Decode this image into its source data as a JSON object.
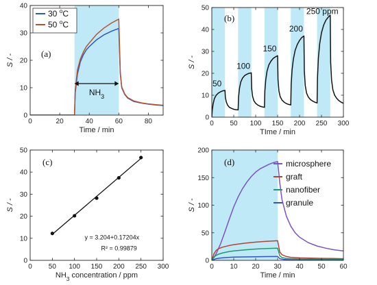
{
  "chart_data": [
    {
      "panel": "(a)",
      "type": "line",
      "xlabel": "Time / min",
      "ylabel": "S / -",
      "xlim": [
        0,
        90
      ],
      "ylim": [
        0,
        40
      ],
      "xticks": [
        0,
        20,
        40,
        60,
        80
      ],
      "yticks": [
        0,
        10,
        20,
        30,
        40
      ],
      "shaded": [
        [
          30,
          60
        ]
      ],
      "annotation": "NH3",
      "legend": "top-left",
      "series": [
        {
          "name": "30 °C",
          "color": "#2f55c5",
          "x": [
            0,
            30,
            30.5,
            32,
            34,
            36,
            38,
            40,
            45,
            50,
            55,
            59.9,
            60,
            61,
            62,
            64,
            66,
            70,
            75,
            80,
            85,
            90
          ],
          "y": [
            0,
            0,
            8,
            15,
            19.5,
            22,
            23.8,
            25,
            27.5,
            29.3,
            30.6,
            31.6,
            31.6,
            15,
            10,
            7.5,
            6.2,
            5,
            4.4,
            4,
            3.7,
            3.5
          ]
        },
        {
          "name": "50 °C",
          "color": "#b5532e",
          "x": [
            0,
            30,
            30.5,
            32,
            34,
            36,
            38,
            40,
            45,
            50,
            55,
            59.9,
            60,
            61,
            62,
            64,
            66,
            70,
            75,
            80,
            85,
            90
          ],
          "y": [
            0,
            0,
            9,
            16.5,
            20.5,
            23,
            25,
            26.3,
            29.5,
            31.8,
            33.6,
            35,
            35,
            15.5,
            10.3,
            7.7,
            6.4,
            5.2,
            4.5,
            4.1,
            3.8,
            3.6
          ]
        }
      ]
    },
    {
      "panel": "(b)",
      "type": "line",
      "xlabel": "TIme / min",
      "ylabel": "S / -",
      "xlim": [
        0,
        300
      ],
      "ylim": [
        0,
        50
      ],
      "xticks": [
        0,
        50,
        100,
        150,
        200,
        250,
        300
      ],
      "yticks": [
        0,
        10,
        20,
        30,
        40,
        50
      ],
      "shaded": [
        [
          0,
          30
        ],
        [
          60,
          90
        ],
        [
          120,
          150
        ],
        [
          180,
          210
        ],
        [
          240,
          270
        ]
      ],
      "annotations": [
        {
          "text": "50",
          "x": 12,
          "y": 14
        },
        {
          "text": "100",
          "x": 72,
          "y": 22
        },
        {
          "text": "150",
          "x": 132,
          "y": 30
        },
        {
          "text": "200",
          "x": 192,
          "y": 39
        },
        {
          "text": "250 ppm",
          "x": 252,
          "y": 47
        }
      ],
      "series": [
        {
          "name": "",
          "color": "#111111",
          "x": [
            0,
            1,
            3,
            6,
            10,
            15,
            20,
            25,
            29.9,
            30,
            31,
            33,
            36,
            40,
            45,
            50,
            55,
            59.9,
            60,
            61,
            63,
            66,
            70,
            75,
            80,
            85,
            89.9,
            90,
            91,
            93,
            96,
            100,
            105,
            110,
            115,
            119.9,
            120,
            121,
            123,
            126,
            130,
            135,
            140,
            145,
            149.9,
            150,
            151,
            153,
            156,
            160,
            165,
            170,
            175,
            179.9,
            180,
            181,
            183,
            186,
            190,
            195,
            200,
            205,
            209.9,
            210,
            211,
            213,
            216,
            220,
            225,
            230,
            235,
            239.9,
            240,
            241,
            243,
            246,
            250,
            255,
            260,
            265,
            269.9,
            270,
            271,
            273,
            276,
            280,
            285,
            290,
            295,
            300
          ],
          "y": [
            0,
            3,
            6,
            8.5,
            10,
            11,
            11.6,
            12,
            12.2,
            12.2,
            9,
            7,
            5.5,
            4.5,
            4,
            3.6,
            3.4,
            3.3,
            3.3,
            9,
            13,
            16,
            17.8,
            19,
            19.6,
            20,
            20.2,
            20.2,
            13,
            9.5,
            7.5,
            6.3,
            5.5,
            5,
            4.7,
            4.5,
            4.5,
            12,
            17,
            21,
            23.8,
            25.6,
            26.8,
            27.5,
            28,
            28,
            17,
            12,
            9.3,
            7.8,
            6.8,
            6.2,
            5.8,
            5.6,
            5.6,
            15,
            21.5,
            26.5,
            30.5,
            33.2,
            35,
            36.3,
            37,
            37,
            21,
            14.5,
            11,
            9.2,
            8,
            7.3,
            6.8,
            6.5,
            6.5,
            18,
            27,
            33.5,
            38.5,
            42,
            44.2,
            45.5,
            46.5,
            46.5,
            25,
            17,
            12.5,
            10,
            8.5,
            7.5,
            6.8,
            6.3
          ]
        }
      ]
    },
    {
      "panel": "(c)",
      "type": "scatter",
      "xlabel": "NH3 concentration / ppm",
      "ylabel": "S / -",
      "xlim": [
        0,
        300
      ],
      "ylim": [
        0,
        50
      ],
      "xticks": [
        0,
        50,
        100,
        150,
        200,
        250,
        300
      ],
      "yticks": [
        0,
        10,
        20,
        30,
        40,
        50
      ],
      "x": [
        50,
        100,
        150,
        200,
        250
      ],
      "y": [
        12.2,
        20.2,
        28.2,
        37.4,
        46.6
      ],
      "fit": {
        "intercept": 3.204,
        "slope": 0.17204
      },
      "equation": "y = 3.204+0.17204x",
      "r2": "R² = 0.99879"
    },
    {
      "panel": "(d)",
      "type": "line",
      "xlabel": "Time / min",
      "ylabel": "S / -",
      "xlim": [
        0,
        60
      ],
      "ylim": [
        0,
        200
      ],
      "xticks": [
        0,
        10,
        20,
        30,
        40,
        50,
        60
      ],
      "yticks": [
        0,
        50,
        100,
        150,
        200
      ],
      "shaded": [
        [
          0,
          30
        ]
      ],
      "legend": "top-right",
      "series": [
        {
          "name": "microsphere",
          "color": "#7b52c4",
          "x": [
            0,
            1,
            2,
            4,
            6,
            8,
            10,
            12,
            14,
            16,
            18,
            20,
            22,
            24,
            26,
            28,
            29.9,
            30,
            30.5,
            31,
            32,
            34,
            36,
            38,
            40,
            44,
            48,
            52,
            56,
            60
          ],
          "y": [
            0,
            5,
            12,
            30,
            52,
            75,
            97,
            115,
            130,
            142,
            152,
            160,
            166,
            170,
            174,
            177,
            179,
            179,
            160,
            140,
            110,
            80,
            62,
            50,
            42,
            32,
            26,
            22,
            19,
            17
          ]
        },
        {
          "name": "graft",
          "color": "#b5412e",
          "x": [
            0,
            0.5,
            1,
            2,
            3,
            5,
            8,
            10,
            15,
            20,
            25,
            29.9,
            30,
            31,
            32,
            34,
            36,
            40,
            45,
            50,
            55,
            60
          ],
          "y": [
            0,
            6,
            12,
            18,
            21,
            24,
            27,
            28.5,
            31,
            33,
            34.5,
            35.5,
            35.5,
            15,
            10,
            7,
            5.5,
            4.5,
            4,
            3.6,
            3.3,
            3
          ]
        },
        {
          "name": "nanofiber",
          "color": "#1e9a6a",
          "x": [
            0,
            0.5,
            1,
            2,
            3,
            5,
            8,
            10,
            15,
            20,
            25,
            29.9,
            30,
            31,
            32,
            34,
            36,
            40,
            45,
            50,
            55,
            60
          ],
          "y": [
            0,
            3,
            6,
            9,
            11,
            13.5,
            16,
            17,
            19,
            20.5,
            21.5,
            22,
            22,
            8,
            5,
            3.5,
            3,
            2.5,
            2.2,
            2,
            1.8,
            1.7
          ]
        },
        {
          "name": "granule",
          "color": "#2f55c5",
          "x": [
            0,
            1,
            2,
            4,
            6,
            10,
            15,
            20,
            25,
            29.9,
            30,
            31,
            33,
            36,
            40,
            45,
            50,
            55,
            60
          ],
          "y": [
            0,
            1.5,
            3,
            4.2,
            5,
            5.8,
            6.2,
            6.5,
            6.8,
            7,
            7,
            3,
            1.5,
            1,
            0.8,
            0.7,
            0.6,
            0.6,
            0.5
          ]
        }
      ]
    }
  ]
}
